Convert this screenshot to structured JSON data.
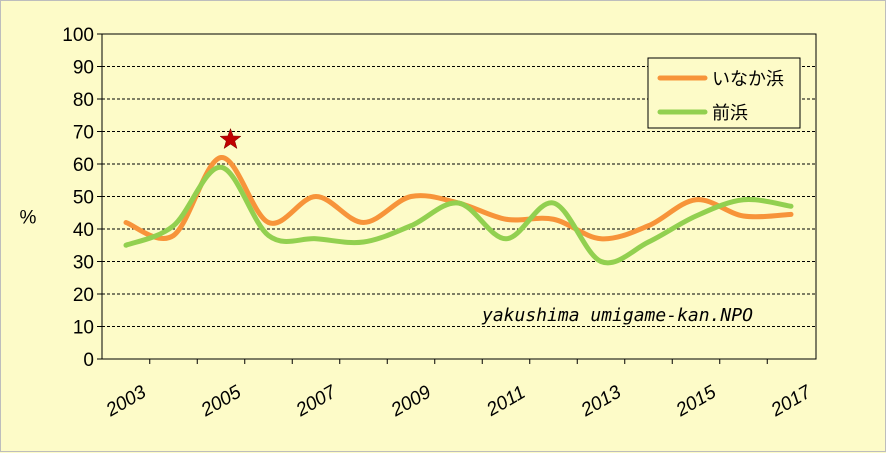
{
  "chart_data": {
    "type": "line",
    "title": "",
    "xlabel": "",
    "ylabel": "%",
    "ylim": [
      0,
      100
    ],
    "yticks": [
      0,
      10,
      20,
      30,
      40,
      50,
      60,
      70,
      80,
      90,
      100
    ],
    "xlim": [
      2003,
      2017
    ],
    "xticks": [
      "2003",
      "2005",
      "2007",
      "2009",
      "2011",
      "2013",
      "2015",
      "2017"
    ],
    "grid": true,
    "legend_position": "top-right",
    "x": [
      2003,
      2004,
      2005,
      2006,
      2007,
      2008,
      2009,
      2010,
      2011,
      2012,
      2013,
      2014,
      2015,
      2016,
      2017
    ],
    "series": [
      {
        "name": "いなか浜",
        "color": "#f7943a",
        "values": [
          42,
          38,
          62,
          42,
          50,
          42,
          50,
          48,
          43,
          43,
          37,
          41,
          49,
          44,
          44.5
        ]
      },
      {
        "name": "前浜",
        "color": "#92d050",
        "values": [
          35,
          41,
          59,
          38,
          37,
          36,
          41,
          48,
          37,
          48,
          30,
          36,
          44,
          49,
          47
        ]
      }
    ],
    "annotations": {
      "star": {
        "x": 2005.2,
        "y": 67.5,
        "color": "#c00000"
      },
      "credit": "yakushima umigame-kan.NPO"
    }
  }
}
